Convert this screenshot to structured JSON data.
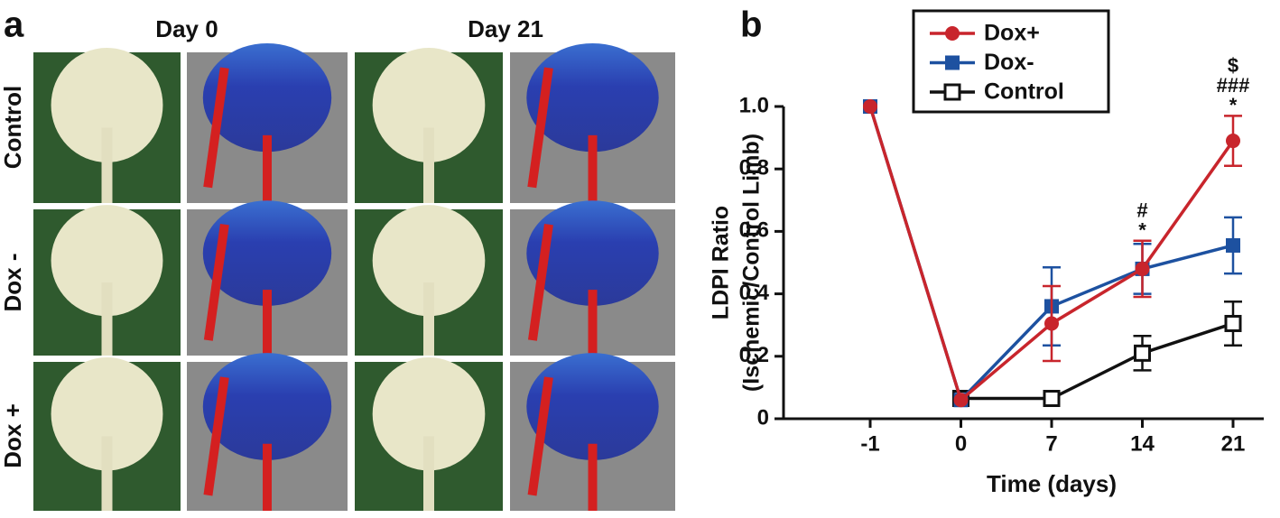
{
  "panel_a": {
    "label": "a",
    "columns": [
      "Day 0",
      "Day 21"
    ],
    "rows": [
      "Control",
      "Dox -",
      "Dox +"
    ]
  },
  "chart_data": {
    "type": "line",
    "panel_label": "b",
    "xlabel": "Time (days)",
    "ylabel": [
      "LDPI Ratio",
      "(Ischemic/Control Limb)"
    ],
    "categories": [
      "-1",
      "0",
      "7",
      "14",
      "21"
    ],
    "ylim": [
      0,
      1
    ],
    "yticks": [
      0,
      0.2,
      0.4,
      0.6,
      0.8,
      {
        "value": 1,
        "label": "1.0"
      }
    ],
    "legend": "upper left",
    "series": [
      {
        "name": "Dox+",
        "color": "#c8252c",
        "marker": "circle",
        "values": [
          1.0,
          0.06,
          0.305,
          0.48,
          0.89
        ],
        "errors": [
          null,
          null,
          0.12,
          0.09,
          0.08
        ]
      },
      {
        "name": "Dox-",
        "color": "#1d51a0",
        "marker": "square",
        "values": [
          1.0,
          0.06,
          0.36,
          0.48,
          0.555
        ],
        "errors": [
          null,
          null,
          0.125,
          0.08,
          0.09
        ]
      },
      {
        "name": "Control",
        "color": "#111111",
        "marker": "open-square",
        "values": [
          null,
          0.065,
          0.065,
          0.21,
          0.305
        ],
        "errors": [
          null,
          null,
          null,
          0.055,
          0.07
        ]
      }
    ],
    "annotations": [
      {
        "category": "14",
        "lines": [
          "#",
          "*"
        ]
      },
      {
        "category": "21",
        "lines": [
          "$",
          "###",
          "*"
        ]
      }
    ]
  }
}
